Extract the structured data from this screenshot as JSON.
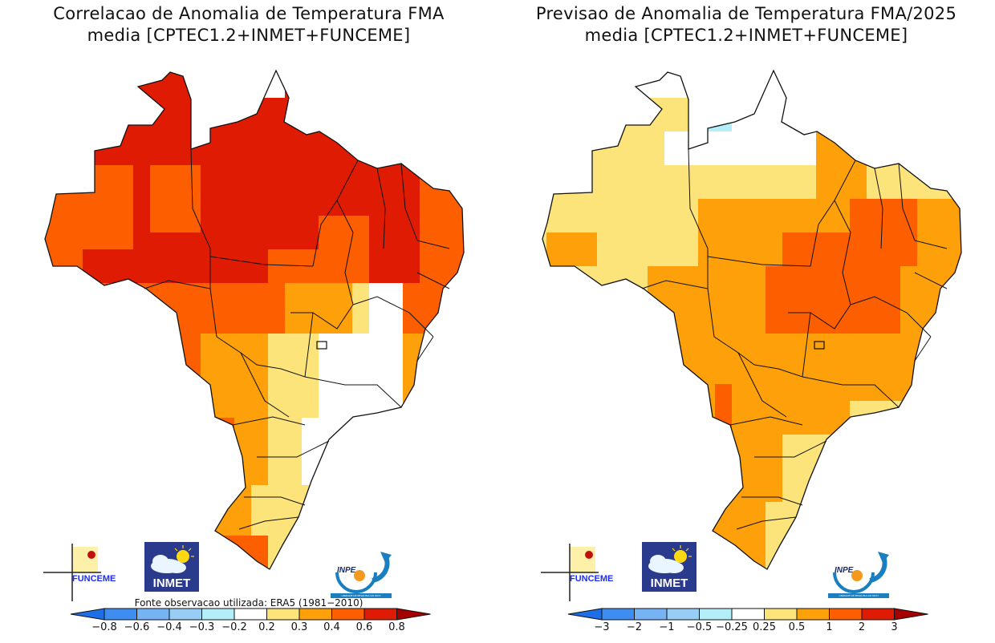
{
  "panels": [
    {
      "id": "correlation",
      "title_line1": "Correlacao de Anomalia de Temperatura FMA",
      "title_line2": "media [CPTEC1.2+INMET+FUNCEME]",
      "source_note": "Fonte observacao utilizada: ERA5 (1981−2010)",
      "colorbar": {
        "ticks": [
          "−0.8",
          "−0.6",
          "−0.4",
          "−0.3",
          "−0.2",
          "0.2",
          "0.3",
          "0.4",
          "0.6",
          "0.8"
        ],
        "colors": [
          "#1e6fe6",
          "#3d8ef0",
          "#75b3f5",
          "#98cdf5",
          "#b4eef8",
          "#ffffff",
          "#fde47a",
          "#fea00a",
          "#fd5f00",
          "#e01b04",
          "#a50000"
        ]
      }
    },
    {
      "id": "forecast",
      "title_line1": "Previsao de Anomalia de Temperatura FMA/2025",
      "title_line2": "media [CPTEC1.2+INMET+FUNCEME]",
      "source_note": "",
      "colorbar": {
        "ticks": [
          "−3",
          "−2",
          "−1",
          "−0.5",
          "−0.25",
          "0.25",
          "0.5",
          "1",
          "2",
          "3"
        ],
        "colors": [
          "#1e6fe6",
          "#3d8ef0",
          "#75b3f5",
          "#98cdf5",
          "#b4eef8",
          "#ffffff",
          "#fde47a",
          "#fea00a",
          "#fd5f00",
          "#e01b04",
          "#a50000"
        ]
      }
    }
  ],
  "logos": {
    "funceme": "FUNCEME",
    "inmet": "INMET",
    "inpe": "INPE",
    "inpe_sub": "UNIDADE DE PESQUISA DO MCTI"
  },
  "chart_data": [
    {
      "type": "heatmap",
      "title": "Correlacao de Anomalia de Temperatura FMA media [CPTEC1.2+INMET+FUNCEME]",
      "region": "Brazil",
      "variable": "correlation of temperature anomaly",
      "levels": [
        -0.8,
        -0.6,
        -0.4,
        -0.3,
        -0.2,
        0.2,
        0.3,
        0.4,
        0.6,
        0.8
      ],
      "regional_summary": {
        "Norte (AM, RR, PA, AC, RO)": ">0.6 to 0.4-0.6",
        "Amapa north": "-0.2 to 0.2",
        "Maranhao/Piaui/Ceara": ">0.6",
        "Nordeste east coast": "0.4-0.6",
        "Centro-Oeste": "0.4-0.6 with 0.3-0.4",
        "Minas Gerais / Rio / Espirito Santo": "-0.2 to 0.2 with 0.2-0.3",
        "Sao Paulo": "0.2-0.3 to 0.3-0.4",
        "Parana / Santa Catarina": "0.2-0.4",
        "Rio Grande do Sul west": "0.4-0.6"
      },
      "legend": "bottom"
    },
    {
      "type": "heatmap",
      "title": "Previsao de Anomalia de Temperatura FMA/2025 media [CPTEC1.2+INMET+FUNCEME]",
      "region": "Brazil",
      "variable": "temperature anomaly forecast",
      "levels": [
        -3,
        -2,
        -1,
        -0.5,
        -0.25,
        0.25,
        0.5,
        1,
        2,
        3
      ],
      "regional_summary": {
        "Amazonas / Acre": "0.25-0.5",
        "Roraima / Amapa / north Para": "-0.25 to 0.25",
        "north Para patch": "-0.5 to -0.25",
        "Tocantins / Piaui / Bahia west": "1-2",
        "Centro-Oeste / Sudeste / Sul": "0.5-1",
        "Sul coast / SP coast": "0.25-0.5",
        "Mato Grosso do Sul west border": "1-2"
      },
      "legend": "bottom"
    }
  ]
}
